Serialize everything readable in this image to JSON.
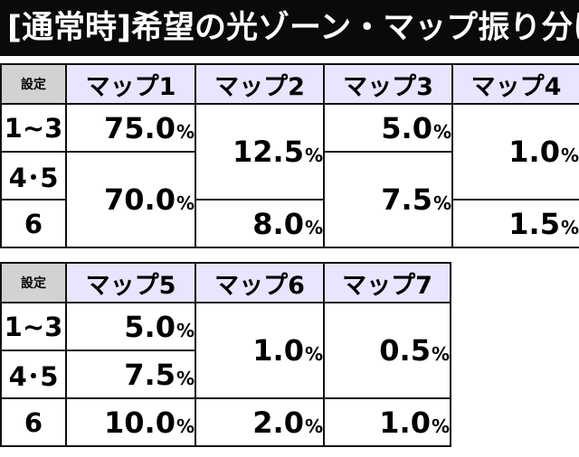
{
  "title": "[通常時]希望の光ゾーン・マップ振り分け",
  "table1": {
    "corner": "設定",
    "headers": [
      "マップ1",
      "マップ2",
      "マップ3",
      "マップ4"
    ],
    "rows": [
      "1~3",
      "4･5",
      "6"
    ],
    "cells": {
      "m1_r1": "75.0",
      "m1_r23": "70.0",
      "m2_r12": "12.5",
      "m2_r3": "8.0",
      "m3_r1": "5.0",
      "m3_r23": "7.5",
      "m4_r12": "1.0",
      "m4_r3": "1.5"
    }
  },
  "table2": {
    "corner": "設定",
    "headers": [
      "マップ5",
      "マップ6",
      "マップ7"
    ],
    "rows": [
      "1~3",
      "4･5",
      "6"
    ],
    "cells": {
      "m5_r1": "5.0",
      "m5_r2": "7.5",
      "m5_r3": "10.0",
      "m6_r12": "1.0",
      "m6_r3": "2.0",
      "m7_r12": "0.5",
      "m7_r3": "1.0"
    }
  },
  "percent_sign": "%",
  "colors": {
    "title_bg": "#0a0a0a",
    "header_bg": "#e8e5ff",
    "corner_bg": "#d2d2d2"
  }
}
